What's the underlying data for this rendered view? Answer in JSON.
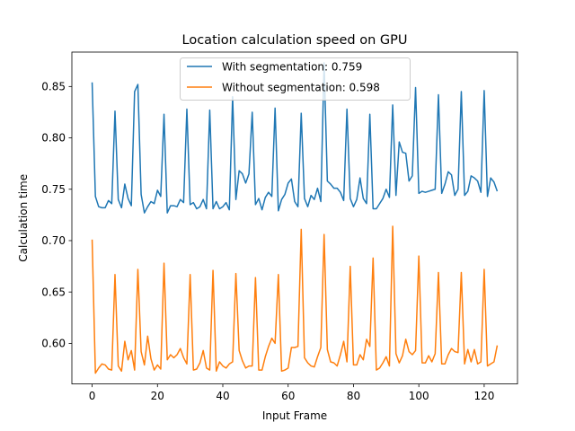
{
  "chart_data": {
    "type": "line",
    "title": "Location calculation speed on GPU",
    "xlabel": "Input Frame",
    "ylabel": "Calculation time",
    "xlim": [
      -6.2,
      130.2
    ],
    "ylim": [
      0.5605,
      0.8835
    ],
    "xticks": [
      0,
      20,
      40,
      60,
      80,
      100,
      120
    ],
    "xtick_labels": [
      "0",
      "20",
      "40",
      "60",
      "80",
      "100",
      "120"
    ],
    "yticks": [
      0.6,
      0.65,
      0.7,
      0.75,
      0.8,
      0.85
    ],
    "ytick_labels": [
      "0.60",
      "0.65",
      "0.70",
      "0.75",
      "0.80",
      "0.85"
    ],
    "grid": false,
    "legend_position": "upper center",
    "series": [
      {
        "name": "With segmentation: 0.759",
        "color": "#1f77b4",
        "values": [
          0.854,
          0.743,
          0.733,
          0.732,
          0.732,
          0.739,
          0.736,
          0.826,
          0.74,
          0.732,
          0.755,
          0.741,
          0.734,
          0.845,
          0.852,
          0.745,
          0.727,
          0.733,
          0.738,
          0.736,
          0.749,
          0.743,
          0.823,
          0.727,
          0.734,
          0.734,
          0.733,
          0.74,
          0.737,
          0.828,
          0.735,
          0.737,
          0.731,
          0.733,
          0.74,
          0.731,
          0.827,
          0.731,
          0.738,
          0.731,
          0.733,
          0.737,
          0.73,
          0.84,
          0.74,
          0.768,
          0.765,
          0.756,
          0.765,
          0.825,
          0.735,
          0.741,
          0.73,
          0.742,
          0.747,
          0.743,
          0.829,
          0.729,
          0.74,
          0.745,
          0.756,
          0.76,
          0.738,
          0.733,
          0.824,
          0.741,
          0.733,
          0.744,
          0.74,
          0.751,
          0.738,
          0.873,
          0.758,
          0.755,
          0.751,
          0.751,
          0.747,
          0.739,
          0.828,
          0.741,
          0.733,
          0.74,
          0.761,
          0.741,
          0.736,
          0.823,
          0.731,
          0.731,
          0.736,
          0.741,
          0.75,
          0.742,
          0.832,
          0.744,
          0.796,
          0.786,
          0.785,
          0.758,
          0.763,
          0.849,
          0.746,
          0.748,
          0.747,
          0.748,
          0.749,
          0.75,
          0.842,
          0.746,
          0.755,
          0.767,
          0.764,
          0.744,
          0.75,
          0.845,
          0.744,
          0.748,
          0.763,
          0.761,
          0.758,
          0.747,
          0.846,
          0.743,
          0.761,
          0.757,
          0.748
        ]
      },
      {
        "name": "Without segmentation: 0.598",
        "color": "#ff7f0e",
        "values": [
          0.701,
          0.571,
          0.576,
          0.58,
          0.579,
          0.575,
          0.574,
          0.667,
          0.578,
          0.573,
          0.602,
          0.584,
          0.593,
          0.574,
          0.672,
          0.592,
          0.579,
          0.607,
          0.585,
          0.574,
          0.579,
          0.575,
          0.678,
          0.584,
          0.589,
          0.586,
          0.589,
          0.595,
          0.586,
          0.58,
          0.667,
          0.574,
          0.575,
          0.581,
          0.593,
          0.576,
          0.574,
          0.671,
          0.573,
          0.582,
          0.578,
          0.576,
          0.58,
          0.582,
          0.668,
          0.593,
          0.583,
          0.576,
          0.578,
          0.578,
          0.664,
          0.574,
          0.574,
          0.587,
          0.597,
          0.605,
          0.6,
          0.667,
          0.573,
          0.574,
          0.576,
          0.596,
          0.596,
          0.597,
          0.711,
          0.586,
          0.581,
          0.578,
          0.577,
          0.587,
          0.596,
          0.706,
          0.594,
          0.582,
          0.581,
          0.578,
          0.589,
          0.602,
          0.582,
          0.675,
          0.579,
          0.579,
          0.589,
          0.584,
          0.604,
          0.597,
          0.683,
          0.574,
          0.576,
          0.581,
          0.587,
          0.578,
          0.714,
          0.59,
          0.581,
          0.588,
          0.604,
          0.592,
          0.589,
          0.593,
          0.685,
          0.581,
          0.581,
          0.588,
          0.582,
          0.59,
          0.669,
          0.58,
          0.58,
          0.589,
          0.595,
          0.592,
          0.591,
          0.669,
          0.58,
          0.594,
          0.582,
          0.594,
          0.58,
          0.582,
          0.672,
          0.578,
          0.58,
          0.582,
          0.598
        ]
      }
    ]
  }
}
